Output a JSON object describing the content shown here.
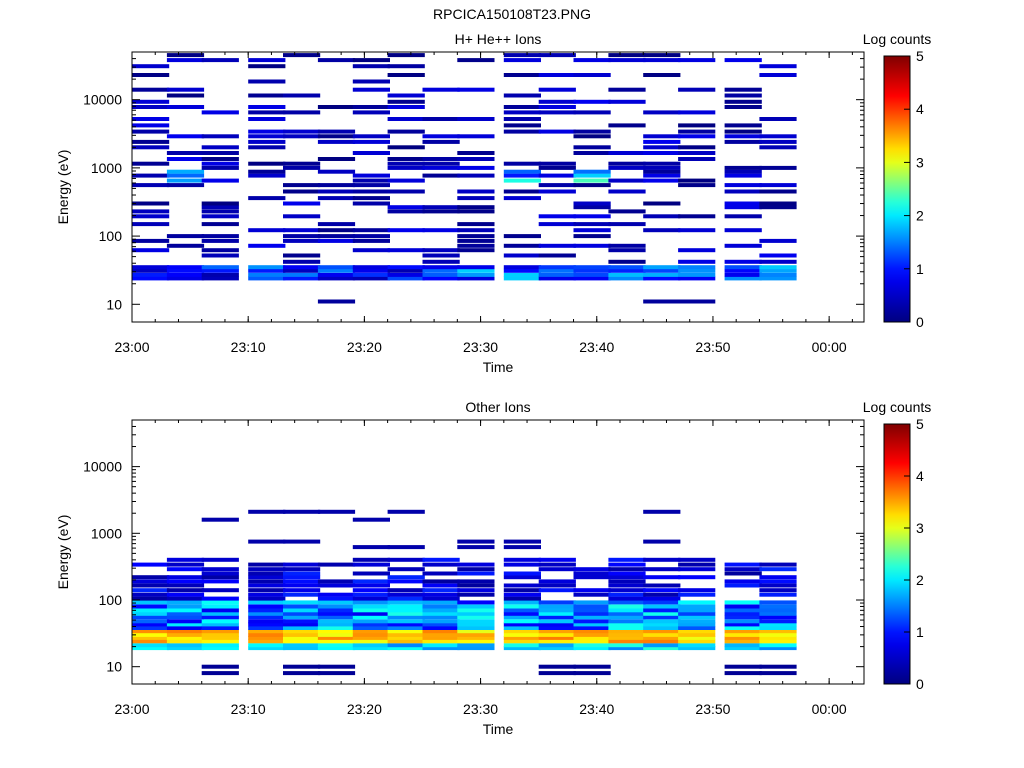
{
  "figure": {
    "title": "RPCICA150108T23.PNG"
  },
  "colors": {
    "colormap": [
      "#000080",
      "#0000ff",
      "#00ffff",
      "#ffff00",
      "#ff0000",
      "#800000"
    ],
    "axes": "#000000",
    "background": "#ffffff"
  },
  "chart_data": [
    {
      "type": "heatmap",
      "title": "H+ He++ Ions",
      "xlabel": "Time",
      "ylabel": "Energy (eV)",
      "yscale": "log",
      "xlim": [
        "23:00",
        "00:03"
      ],
      "ylim": [
        5.5,
        50000
      ],
      "xticks": [
        "23:00",
        "23:10",
        "23:20",
        "23:30",
        "23:40",
        "23:50",
        "00:00"
      ],
      "yticks": [
        10,
        100,
        1000,
        10000
      ],
      "ytick_labels": [
        "10",
        "100",
        "1000",
        "10000"
      ],
      "time_bins": [
        "23:00",
        "23:03",
        "23:06",
        "23:10",
        "23:13",
        "23:16",
        "23:19",
        "23:22",
        "23:25",
        "23:28",
        "23:32",
        "23:35",
        "23:38",
        "23:41",
        "23:44",
        "23:47",
        "23:51",
        "23:54"
      ],
      "energy_bins_eV": [
        11,
        24,
        27,
        31,
        35,
        42,
        52,
        62,
        72,
        85,
        100,
        122,
        150,
        195,
        230,
        265,
        300,
        360,
        450,
        560,
        650,
        770,
        880,
        1000,
        1150,
        1350,
        1650,
        2000,
        2400,
        2900,
        3400,
        4200,
        5200,
        6500,
        7800,
        9300,
        11500,
        14000,
        18500,
        23000,
        31000,
        38000,
        45000
      ],
      "colorbar": {
        "label": "Log counts",
        "min": 0,
        "max": 5,
        "ticks": [
          0,
          1,
          2,
          3,
          4,
          5
        ]
      },
      "grid": false
    },
    {
      "type": "heatmap",
      "title": "Other Ions",
      "xlabel": "Time",
      "ylabel": "Energy (eV)",
      "yscale": "log",
      "xlim": [
        "23:00",
        "00:03"
      ],
      "ylim": [
        5.5,
        50000
      ],
      "xticks": [
        "23:00",
        "23:10",
        "23:20",
        "23:30",
        "23:40",
        "23:50",
        "00:00"
      ],
      "yticks": [
        10,
        100,
        1000,
        10000
      ],
      "ytick_labels": [
        "10",
        "100",
        "1000",
        "10000"
      ],
      "time_bins": [
        "23:00",
        "23:03",
        "23:06",
        "23:10",
        "23:13",
        "23:16",
        "23:19",
        "23:22",
        "23:25",
        "23:28",
        "23:32",
        "23:35",
        "23:38",
        "23:41",
        "23:44",
        "23:47",
        "23:51",
        "23:54"
      ],
      "energy_bins_eV": [
        8,
        10,
        19,
        21,
        24,
        27,
        30,
        34,
        38,
        43,
        48,
        55,
        62,
        70,
        80,
        92,
        105,
        120,
        140,
        165,
        190,
        220,
        250,
        290,
        340,
        400,
        620,
        750,
        1600,
        2100
      ],
      "colorbar": {
        "label": "Log counts",
        "min": 0,
        "max": 5,
        "ticks": [
          0,
          1,
          2,
          3,
          4,
          5
        ]
      },
      "grid": false
    }
  ]
}
